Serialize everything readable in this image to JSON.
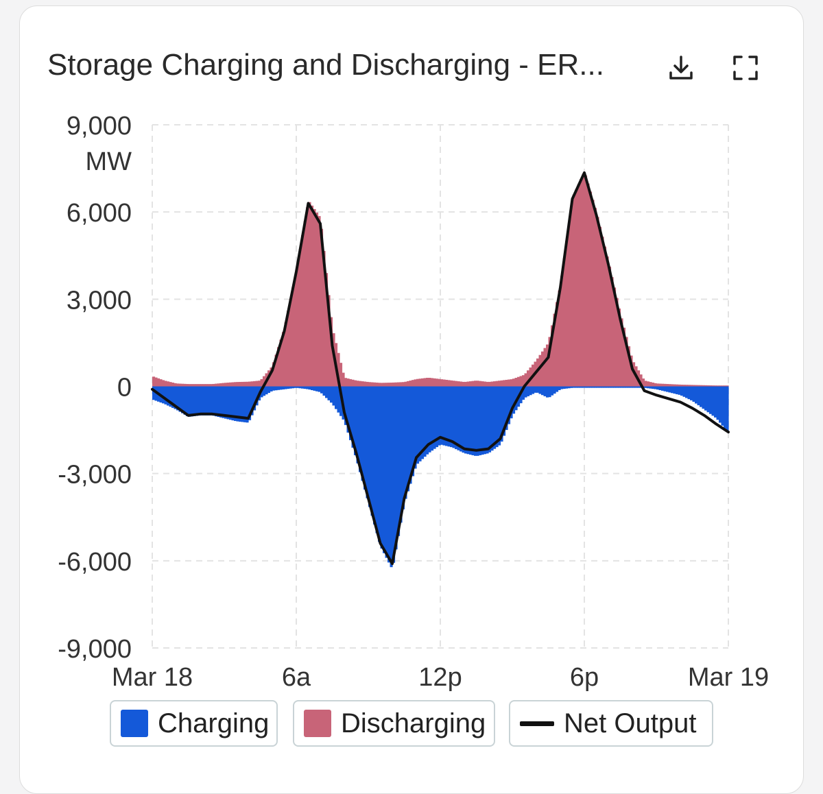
{
  "header": {
    "title": "Storage Charging and Discharging - ER...",
    "download_icon": "download-icon",
    "fullscreen_icon": "fullscreen-icon"
  },
  "colors": {
    "charging": "#1459d9",
    "discharging": "#c86478",
    "net": "#111111",
    "grid": "#e3e3e3",
    "legend_border": "#c9d3d6"
  },
  "legend": [
    {
      "label": "Charging",
      "color": "#1459d9",
      "kind": "box"
    },
    {
      "label": "Discharging",
      "color": "#c86478",
      "kind": "box"
    },
    {
      "label": "Net Output",
      "color": "#111111",
      "kind": "line"
    }
  ],
  "chart_data": {
    "type": "bar",
    "title": "Storage Charging and Discharging - ER...",
    "y_unit": "MW",
    "ylim": [
      -9000,
      9000
    ],
    "yticks": [
      9000,
      6000,
      3000,
      0,
      -3000,
      -6000,
      -9000
    ],
    "ytick_labels": [
      "9,000",
      "6,000",
      "3,000",
      "0",
      "-3,000",
      "-6,000",
      "-9,000"
    ],
    "xlim_hours": [
      0,
      24
    ],
    "xticks_hours": [
      0,
      6,
      12,
      18,
      24
    ],
    "xtick_labels": [
      "Mar 18",
      "6a",
      "12p",
      "6p",
      "Mar 19"
    ],
    "grid": true,
    "legend_position": "bottom",
    "x_hours": [
      0,
      0.5,
      1,
      1.5,
      2,
      2.5,
      3,
      3.5,
      4,
      4.5,
      5,
      5.5,
      6,
      6.5,
      7,
      7.5,
      8,
      8.5,
      9,
      9.5,
      10,
      10.5,
      11,
      11.5,
      12,
      12.5,
      13,
      13.5,
      14,
      14.5,
      15,
      15.5,
      16,
      16.5,
      17,
      17.5,
      18,
      18.5,
      19,
      19.5,
      20,
      20.5,
      21,
      21.5,
      22,
      22.5,
      23,
      23.5,
      24
    ],
    "series": [
      {
        "name": "Charging",
        "kind": "bar",
        "values": [
          -450,
          -600,
          -800,
          -1050,
          -1000,
          -1000,
          -1100,
          -1200,
          -1250,
          -400,
          -150,
          -100,
          -50,
          -100,
          -200,
          -600,
          -1200,
          -2500,
          -4000,
          -5500,
          -6300,
          -4000,
          -2700,
          -2300,
          -2000,
          -2100,
          -2300,
          -2400,
          -2300,
          -2000,
          -1000,
          -400,
          -200,
          -400,
          -100,
          -50,
          -50,
          -50,
          -50,
          -50,
          -50,
          -50,
          -100,
          -200,
          -300,
          -500,
          -800,
          -1100,
          -1600
        ]
      },
      {
        "name": "Discharging",
        "kind": "bar",
        "values": [
          350,
          200,
          100,
          80,
          80,
          80,
          120,
          150,
          160,
          200,
          700,
          2000,
          4000,
          6400,
          5800,
          2000,
          300,
          200,
          150,
          120,
          130,
          150,
          250,
          300,
          250,
          200,
          150,
          200,
          150,
          200,
          250,
          400,
          900,
          1500,
          3500,
          6500,
          7400,
          6000,
          4300,
          2500,
          900,
          200,
          100,
          80,
          60,
          50,
          40,
          30,
          30
        ]
      },
      {
        "name": "Net Output",
        "kind": "line",
        "values": [
          -100,
          -400,
          -700,
          -1000,
          -950,
          -950,
          -1000,
          -1050,
          -1100,
          -200,
          550,
          1900,
          3950,
          6300,
          5600,
          1400,
          -900,
          -2300,
          -3850,
          -5400,
          -6100,
          -3850,
          -2450,
          -2000,
          -1750,
          -1900,
          -2150,
          -2200,
          -2150,
          -1800,
          -750,
          0,
          500,
          1000,
          3400,
          6450,
          7350,
          5900,
          4200,
          2300,
          600,
          -150,
          -300,
          -420,
          -540,
          -750,
          -1000,
          -1300,
          -1570
        ]
      }
    ]
  }
}
